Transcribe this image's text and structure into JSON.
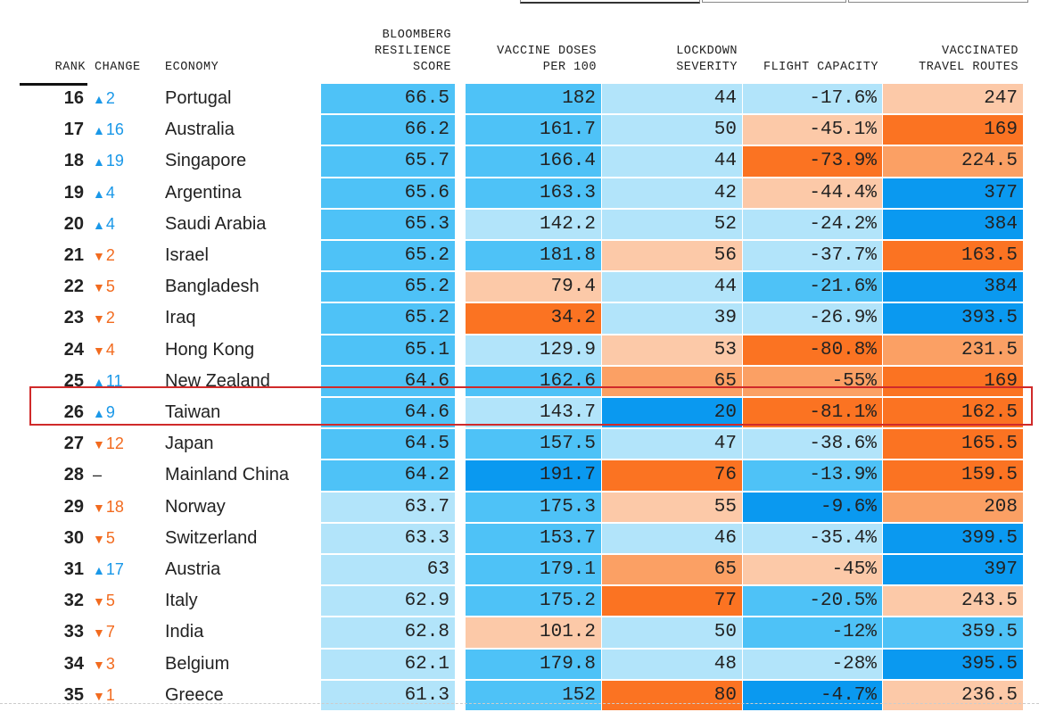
{
  "headers": {
    "rank": "RANK",
    "change": "CHANGE",
    "economy": "ECONOMY",
    "score": "BLOOMBERG\nRESILIENCE\nSCORE",
    "vaccine": "VACCINE DOSES\nPER 100",
    "lockdown": "LOCKDOWN\nSEVERITY",
    "flight": "FLIGHT CAPACITY",
    "routes": "VACCINATED\nTRAVEL ROUTES"
  },
  "colors": {
    "dark_blue": "#0a99f0",
    "mid_blue": "#4ec2f7",
    "light_blue": "#b2e4fa",
    "light_orange": "#fcc9a8",
    "mid_orange": "#fba064",
    "dark_orange": "#fb7322",
    "up": "#1a98e8",
    "down": "#f26b1f",
    "highlight_border": "#d02a2a"
  },
  "highlighted_economy": "Taiwan",
  "chart_data": {
    "type": "table",
    "columns": [
      "RANK",
      "CHANGE",
      "ECONOMY",
      "BLOOMBERG RESILIENCE SCORE",
      "VACCINE DOSES PER 100",
      "LOCKDOWN SEVERITY",
      "FLIGHT CAPACITY",
      "VACCINATED TRAVEL ROUTES"
    ],
    "rows": [
      {
        "rank": "16",
        "dir": "up",
        "change": "2",
        "economy": "Portugal",
        "score": "66.5",
        "vaccine": "182",
        "lockdown": "44",
        "flight": "-17.6%",
        "routes": "247",
        "c": [
          "mid_blue",
          "mid_blue",
          "light_blue",
          "light_blue",
          "light_orange"
        ]
      },
      {
        "rank": "17",
        "dir": "up",
        "change": "16",
        "economy": "Australia",
        "score": "66.2",
        "vaccine": "161.7",
        "lockdown": "50",
        "flight": "-45.1%",
        "routes": "169",
        "c": [
          "mid_blue",
          "mid_blue",
          "light_blue",
          "light_orange",
          "dark_orange"
        ]
      },
      {
        "rank": "18",
        "dir": "up",
        "change": "19",
        "economy": "Singapore",
        "score": "65.7",
        "vaccine": "166.4",
        "lockdown": "44",
        "flight": "-73.9%",
        "routes": "224.5",
        "c": [
          "mid_blue",
          "mid_blue",
          "light_blue",
          "dark_orange",
          "mid_orange"
        ]
      },
      {
        "rank": "19",
        "dir": "up",
        "change": "4",
        "economy": "Argentina",
        "score": "65.6",
        "vaccine": "163.3",
        "lockdown": "42",
        "flight": "-44.4%",
        "routes": "377",
        "c": [
          "mid_blue",
          "mid_blue",
          "light_blue",
          "light_orange",
          "dark_blue"
        ]
      },
      {
        "rank": "20",
        "dir": "up",
        "change": "4",
        "economy": "Saudi Arabia",
        "score": "65.3",
        "vaccine": "142.2",
        "lockdown": "52",
        "flight": "-24.2%",
        "routes": "384",
        "c": [
          "mid_blue",
          "light_blue",
          "light_blue",
          "light_blue",
          "dark_blue"
        ]
      },
      {
        "rank": "21",
        "dir": "down",
        "change": "2",
        "economy": "Israel",
        "score": "65.2",
        "vaccine": "181.8",
        "lockdown": "56",
        "flight": "-37.7%",
        "routes": "163.5",
        "c": [
          "mid_blue",
          "mid_blue",
          "light_orange",
          "light_blue",
          "dark_orange"
        ]
      },
      {
        "rank": "22",
        "dir": "down",
        "change": "5",
        "economy": "Bangladesh",
        "score": "65.2",
        "vaccine": "79.4",
        "lockdown": "44",
        "flight": "-21.6%",
        "routes": "384",
        "c": [
          "mid_blue",
          "light_orange",
          "light_blue",
          "mid_blue",
          "dark_blue"
        ]
      },
      {
        "rank": "23",
        "dir": "down",
        "change": "2",
        "economy": "Iraq",
        "score": "65.2",
        "vaccine": "34.2",
        "lockdown": "39",
        "flight": "-26.9%",
        "routes": "393.5",
        "c": [
          "mid_blue",
          "dark_orange",
          "light_blue",
          "light_blue",
          "dark_blue"
        ]
      },
      {
        "rank": "24",
        "dir": "down",
        "change": "4",
        "economy": "Hong Kong",
        "score": "65.1",
        "vaccine": "129.9",
        "lockdown": "53",
        "flight": "-80.8%",
        "routes": "231.5",
        "c": [
          "mid_blue",
          "light_blue",
          "light_orange",
          "dark_orange",
          "mid_orange"
        ]
      },
      {
        "rank": "25",
        "dir": "up",
        "change": "11",
        "economy": "New Zealand",
        "score": "64.6",
        "vaccine": "162.6",
        "lockdown": "65",
        "flight": "-55%",
        "routes": "169",
        "c": [
          "mid_blue",
          "mid_blue",
          "mid_orange",
          "mid_orange",
          "dark_orange"
        ]
      },
      {
        "rank": "26",
        "dir": "up",
        "change": "9",
        "economy": "Taiwan",
        "score": "64.6",
        "vaccine": "143.7",
        "lockdown": "20",
        "flight": "-81.1%",
        "routes": "162.5",
        "c": [
          "mid_blue",
          "light_blue",
          "dark_blue",
          "dark_orange",
          "dark_orange"
        ]
      },
      {
        "rank": "27",
        "dir": "down",
        "change": "12",
        "economy": "Japan",
        "score": "64.5",
        "vaccine": "157.5",
        "lockdown": "47",
        "flight": "-38.6%",
        "routes": "165.5",
        "c": [
          "mid_blue",
          "mid_blue",
          "light_blue",
          "light_blue",
          "dark_orange"
        ]
      },
      {
        "rank": "28",
        "dir": "flat",
        "change": "–",
        "economy": "Mainland China",
        "score": "64.2",
        "vaccine": "191.7",
        "lockdown": "76",
        "flight": "-13.9%",
        "routes": "159.5",
        "c": [
          "mid_blue",
          "dark_blue",
          "dark_orange",
          "mid_blue",
          "dark_orange"
        ]
      },
      {
        "rank": "29",
        "dir": "down",
        "change": "18",
        "economy": "Norway",
        "score": "63.7",
        "vaccine": "175.3",
        "lockdown": "55",
        "flight": "-9.6%",
        "routes": "208",
        "c": [
          "light_blue",
          "mid_blue",
          "light_orange",
          "dark_blue",
          "mid_orange"
        ]
      },
      {
        "rank": "30",
        "dir": "down",
        "change": "5",
        "economy": "Switzerland",
        "score": "63.3",
        "vaccine": "153.7",
        "lockdown": "46",
        "flight": "-35.4%",
        "routes": "399.5",
        "c": [
          "light_blue",
          "mid_blue",
          "light_blue",
          "light_blue",
          "dark_blue"
        ]
      },
      {
        "rank": "31",
        "dir": "up",
        "change": "17",
        "economy": "Austria",
        "score": "63",
        "vaccine": "179.1",
        "lockdown": "65",
        "flight": "-45%",
        "routes": "397",
        "c": [
          "light_blue",
          "mid_blue",
          "mid_orange",
          "light_orange",
          "dark_blue"
        ]
      },
      {
        "rank": "32",
        "dir": "down",
        "change": "5",
        "economy": "Italy",
        "score": "62.9",
        "vaccine": "175.2",
        "lockdown": "77",
        "flight": "-20.5%",
        "routes": "243.5",
        "c": [
          "light_blue",
          "mid_blue",
          "dark_orange",
          "mid_blue",
          "light_orange"
        ]
      },
      {
        "rank": "33",
        "dir": "down",
        "change": "7",
        "economy": "India",
        "score": "62.8",
        "vaccine": "101.2",
        "lockdown": "50",
        "flight": "-12%",
        "routes": "359.5",
        "c": [
          "light_blue",
          "light_orange",
          "light_blue",
          "mid_blue",
          "mid_blue"
        ]
      },
      {
        "rank": "34",
        "dir": "down",
        "change": "3",
        "economy": "Belgium",
        "score": "62.1",
        "vaccine": "179.8",
        "lockdown": "48",
        "flight": "-28%",
        "routes": "395.5",
        "c": [
          "light_blue",
          "mid_blue",
          "light_blue",
          "light_blue",
          "dark_blue"
        ]
      },
      {
        "rank": "35",
        "dir": "down",
        "change": "1",
        "economy": "Greece",
        "score": "61.3",
        "vaccine": "152",
        "lockdown": "80",
        "flight": "-4.7%",
        "routes": "236.5",
        "c": [
          "light_blue",
          "mid_blue",
          "dark_orange",
          "dark_blue",
          "light_orange"
        ]
      }
    ]
  }
}
